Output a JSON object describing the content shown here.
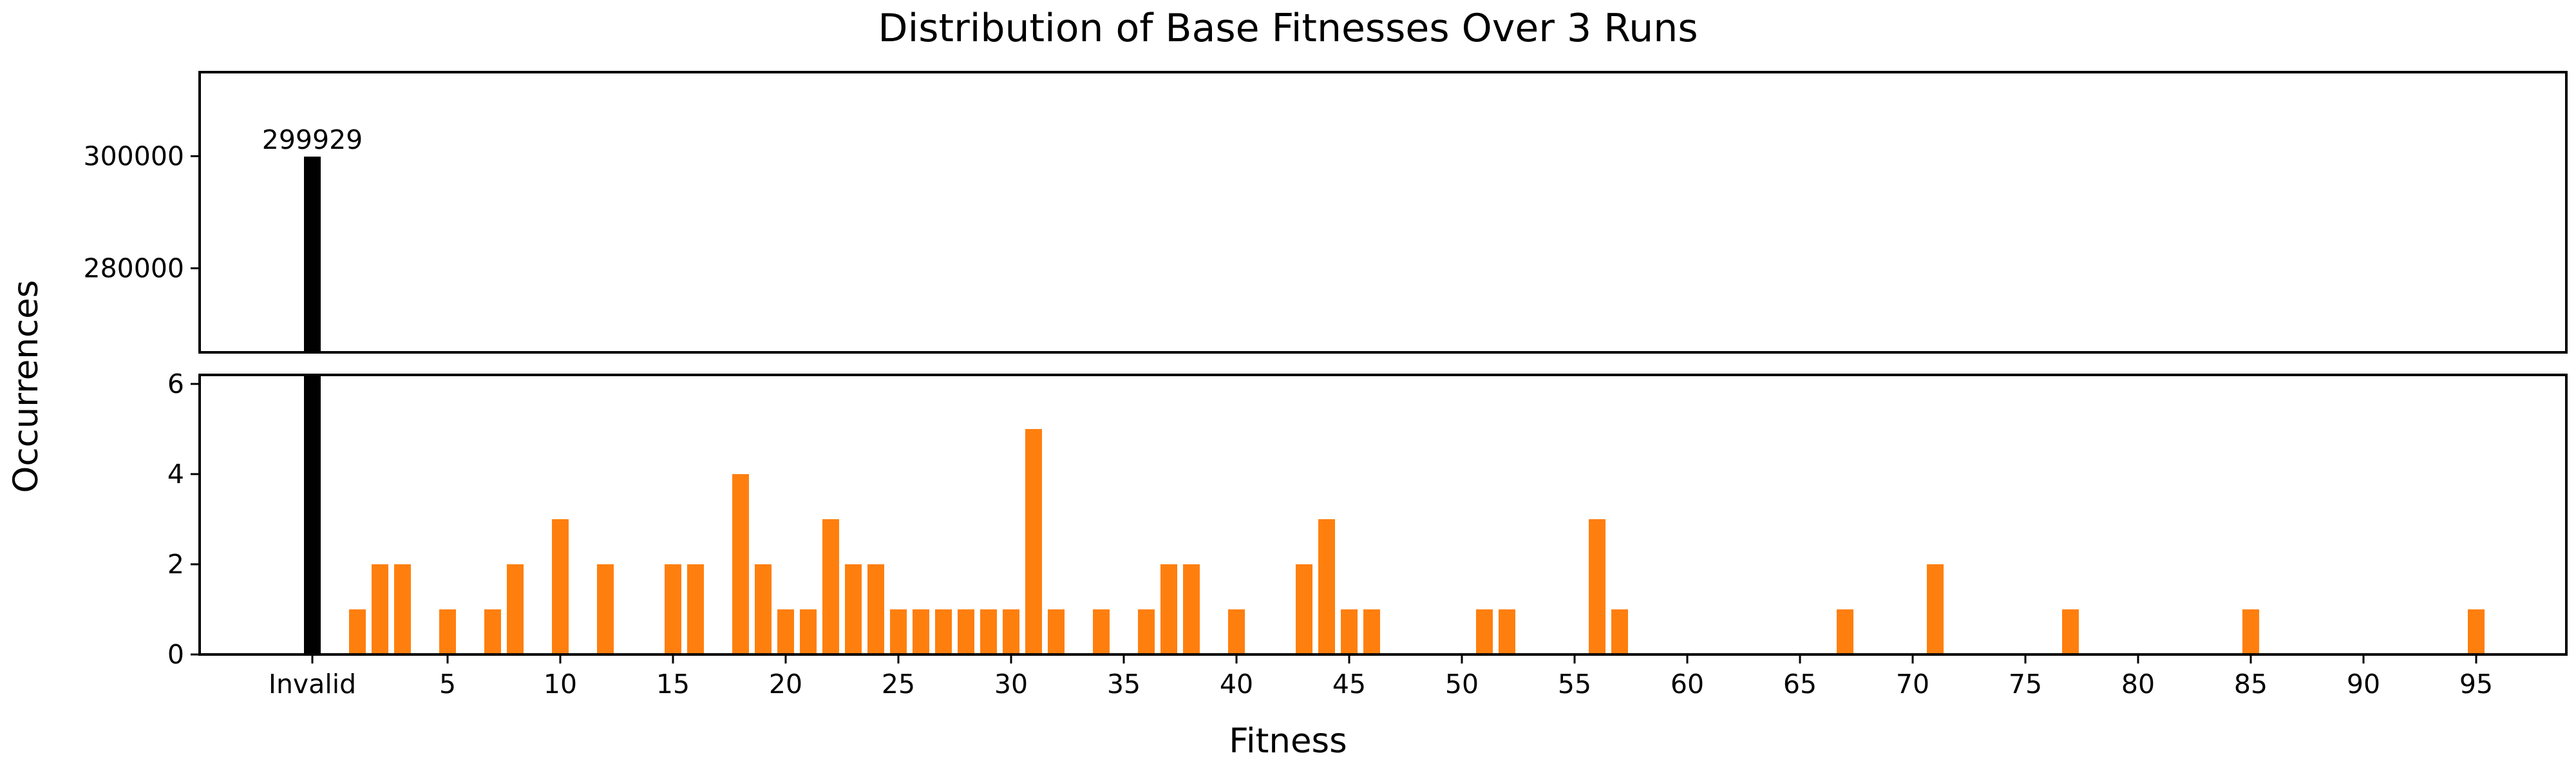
{
  "chart_data": {
    "type": "bar",
    "title": "Distribution of Base Fitnesses Over 3 Runs",
    "xlabel": "Fitness",
    "ylabel": "Occurrences",
    "x_tick_labels": [
      "Invalid",
      "5",
      "10",
      "15",
      "20",
      "25",
      "30",
      "35",
      "40",
      "45",
      "50",
      "55",
      "60",
      "65",
      "70",
      "75",
      "80",
      "85",
      "90",
      "95"
    ],
    "x_tick_values": [
      -1,
      5,
      10,
      15,
      20,
      25,
      30,
      35,
      40,
      45,
      50,
      55,
      60,
      65,
      70,
      75,
      80,
      85,
      90,
      95
    ],
    "xlim": [
      -6,
      99
    ],
    "axis_break": {
      "upper": {
        "ylim": [
          265000,
          315000
        ],
        "ticks": [
          280000,
          300000
        ],
        "tick_labels": [
          "280000",
          "300000"
        ]
      },
      "lower": {
        "ylim": [
          0,
          6.2
        ],
        "ticks": [
          0,
          2,
          4,
          6
        ],
        "tick_labels": [
          "0",
          "2",
          "4",
          "6"
        ]
      }
    },
    "invalid_bar": {
      "category": "Invalid",
      "x": -1,
      "value": 299929,
      "label": "299929",
      "color": "#000000"
    },
    "bar_color": "#ff7f0e",
    "bars": [
      {
        "x": 1,
        "value": 1
      },
      {
        "x": 2,
        "value": 2
      },
      {
        "x": 3,
        "value": 2
      },
      {
        "x": 5,
        "value": 1
      },
      {
        "x": 7,
        "value": 1
      },
      {
        "x": 8,
        "value": 2
      },
      {
        "x": 10,
        "value": 3
      },
      {
        "x": 12,
        "value": 2
      },
      {
        "x": 15,
        "value": 2
      },
      {
        "x": 16,
        "value": 2
      },
      {
        "x": 18,
        "value": 4
      },
      {
        "x": 19,
        "value": 2
      },
      {
        "x": 20,
        "value": 1
      },
      {
        "x": 21,
        "value": 1
      },
      {
        "x": 22,
        "value": 3
      },
      {
        "x": 23,
        "value": 2
      },
      {
        "x": 24,
        "value": 2
      },
      {
        "x": 25,
        "value": 1
      },
      {
        "x": 26,
        "value": 1
      },
      {
        "x": 27,
        "value": 1
      },
      {
        "x": 28,
        "value": 1
      },
      {
        "x": 29,
        "value": 1
      },
      {
        "x": 30,
        "value": 1
      },
      {
        "x": 31,
        "value": 5
      },
      {
        "x": 32,
        "value": 1
      },
      {
        "x": 34,
        "value": 1
      },
      {
        "x": 36,
        "value": 1
      },
      {
        "x": 37,
        "value": 2
      },
      {
        "x": 38,
        "value": 2
      },
      {
        "x": 40,
        "value": 1
      },
      {
        "x": 43,
        "value": 2
      },
      {
        "x": 44,
        "value": 3
      },
      {
        "x": 45,
        "value": 1
      },
      {
        "x": 46,
        "value": 1
      },
      {
        "x": 51,
        "value": 1
      },
      {
        "x": 52,
        "value": 1
      },
      {
        "x": 56,
        "value": 3
      },
      {
        "x": 57,
        "value": 1
      },
      {
        "x": 67,
        "value": 1
      },
      {
        "x": 71,
        "value": 2
      },
      {
        "x": 77,
        "value": 1
      },
      {
        "x": 85,
        "value": 1
      },
      {
        "x": 95,
        "value": 1
      }
    ],
    "grid": false,
    "legend": "none"
  }
}
